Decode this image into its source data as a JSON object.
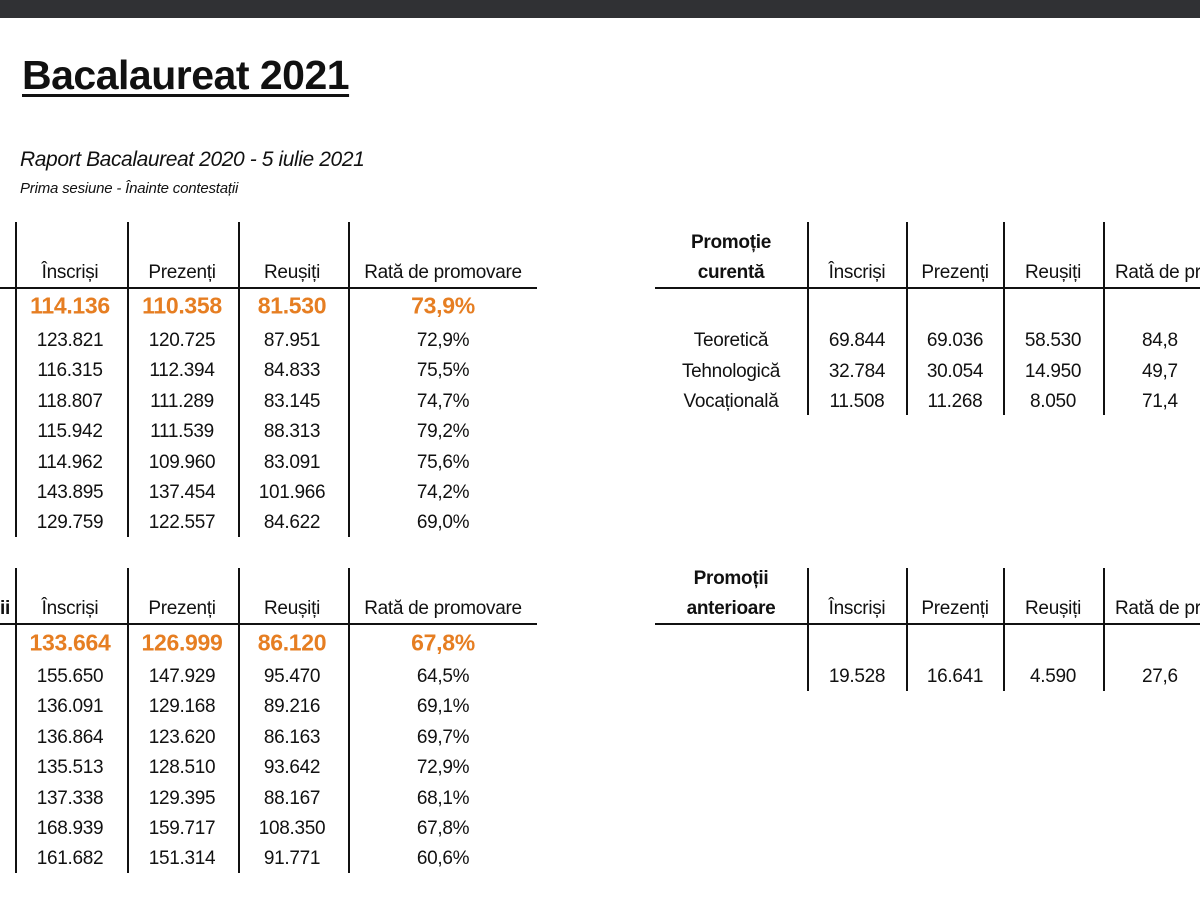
{
  "title": "Bacalaureat 2021",
  "subtitle": "Raport Bacalaureat 2020 - 5 iulie 2021",
  "session": "Prima sesiune - Înainte contestații",
  "colors": {
    "highlight": "#e67e22",
    "topbar": "#303134"
  },
  "columns": [
    "Înscriși",
    "Prezenți",
    "Reușiți",
    "Rată de promovare"
  ],
  "table_2021": {
    "highlight": [
      "114.136",
      "110.358",
      "81.530",
      "73,9%"
    ],
    "rows": [
      [
        "123.821",
        "120.725",
        "87.951",
        "72,9%"
      ],
      [
        "116.315",
        "112.394",
        "84.833",
        "75,5%"
      ],
      [
        "118.807",
        "111.289",
        "83.145",
        "74,7%"
      ],
      [
        "115.942",
        "111.539",
        "88.313",
        "79,2%"
      ],
      [
        "114.962",
        "109.960",
        "83.091",
        "75,6%"
      ],
      [
        "143.895",
        "137.454",
        "101.966",
        "74,2%"
      ],
      [
        "129.759",
        "122.557",
        "84.622",
        "69,0%"
      ]
    ]
  },
  "table_all": {
    "first_col_fragment": "ii",
    "highlight": [
      "133.664",
      "126.999",
      "86.120",
      "67,8%"
    ],
    "rows": [
      [
        "155.650",
        "147.929",
        "95.470",
        "64,5%"
      ],
      [
        "136.091",
        "129.168",
        "89.216",
        "69,1%"
      ],
      [
        "136.864",
        "123.620",
        "86.163",
        "69,7%"
      ],
      [
        "135.513",
        "128.510",
        "93.642",
        "72,9%"
      ],
      [
        "137.338",
        "129.395",
        "88.167",
        "68,1%"
      ],
      [
        "168.939",
        "159.717",
        "108.350",
        "67,8%"
      ],
      [
        "161.682",
        "151.314",
        "91.771",
        "60,6%"
      ]
    ]
  },
  "current_class": {
    "header_line1": "Promoție",
    "header_line2": "curentă",
    "columns": [
      "Înscriși",
      "Prezenți",
      "Reușiți",
      "Rată de pr"
    ],
    "rows": [
      [
        "Teoretică",
        "69.844",
        "69.036",
        "58.530",
        "84,8"
      ],
      [
        "Tehnologică",
        "32.784",
        "30.054",
        "14.950",
        "49,7"
      ],
      [
        "Vocațională",
        "11.508",
        "11.268",
        "8.050",
        "71,4"
      ]
    ]
  },
  "previous_classes": {
    "header_line1": "Promoții",
    "header_line2": "anterioare",
    "columns": [
      "Înscriși",
      "Prezenți",
      "Reușiți",
      "Rată de pr"
    ],
    "rows": [
      [
        "",
        "19.528",
        "16.641",
        "4.590",
        "27,6"
      ]
    ]
  }
}
